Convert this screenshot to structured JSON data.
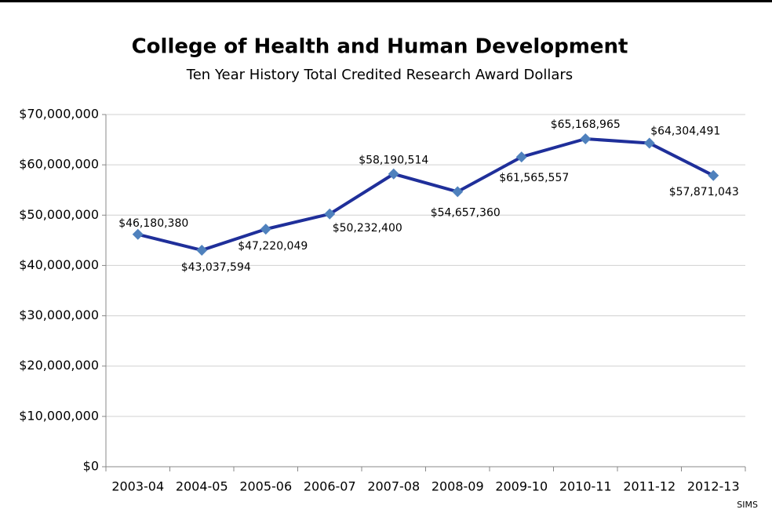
{
  "chart_data": {
    "type": "line",
    "title": "College of Health and Human Development",
    "subtitle": "Ten Year History Total Credited Research Award Dollars",
    "source": "SIMS",
    "categories": [
      "2003-04",
      "2004-05",
      "2005-06",
      "2006-07",
      "2007-08",
      "2008-09",
      "2009-10",
      "2010-11",
      "2011-12",
      "2012-13"
    ],
    "series": [
      {
        "name": "Total Credited Research Award Dollars",
        "color": "#1f2f9a",
        "marker_color": "#4f81bd",
        "values": [
          46180380,
          43037594,
          47220049,
          50232400,
          58190514,
          54657360,
          61565557,
          65168965,
          64304491,
          57871043
        ],
        "value_labels": [
          "$46,180,380",
          "$43,037,594",
          "$47,220,049",
          "$50,232,400",
          "$58,190,514",
          "$54,657,360",
          "$61,565,557",
          "$65,168,965",
          "$64,304,491",
          "$57,871,043"
        ]
      }
    ],
    "ylim": [
      0,
      70000000
    ],
    "yticks": [
      {
        "value": 0,
        "label": "$0"
      },
      {
        "value": 10000000,
        "label": "$10,000,000"
      },
      {
        "value": 20000000,
        "label": "$20,000,000"
      },
      {
        "value": 30000000,
        "label": "$30,000,000"
      },
      {
        "value": 40000000,
        "label": "$40,000,000"
      },
      {
        "value": 50000000,
        "label": "$50,000,000"
      },
      {
        "value": 60000000,
        "label": "$60,000,000"
      },
      {
        "value": 70000000,
        "label": "$70,000,000"
      }
    ],
    "grid": true
  }
}
